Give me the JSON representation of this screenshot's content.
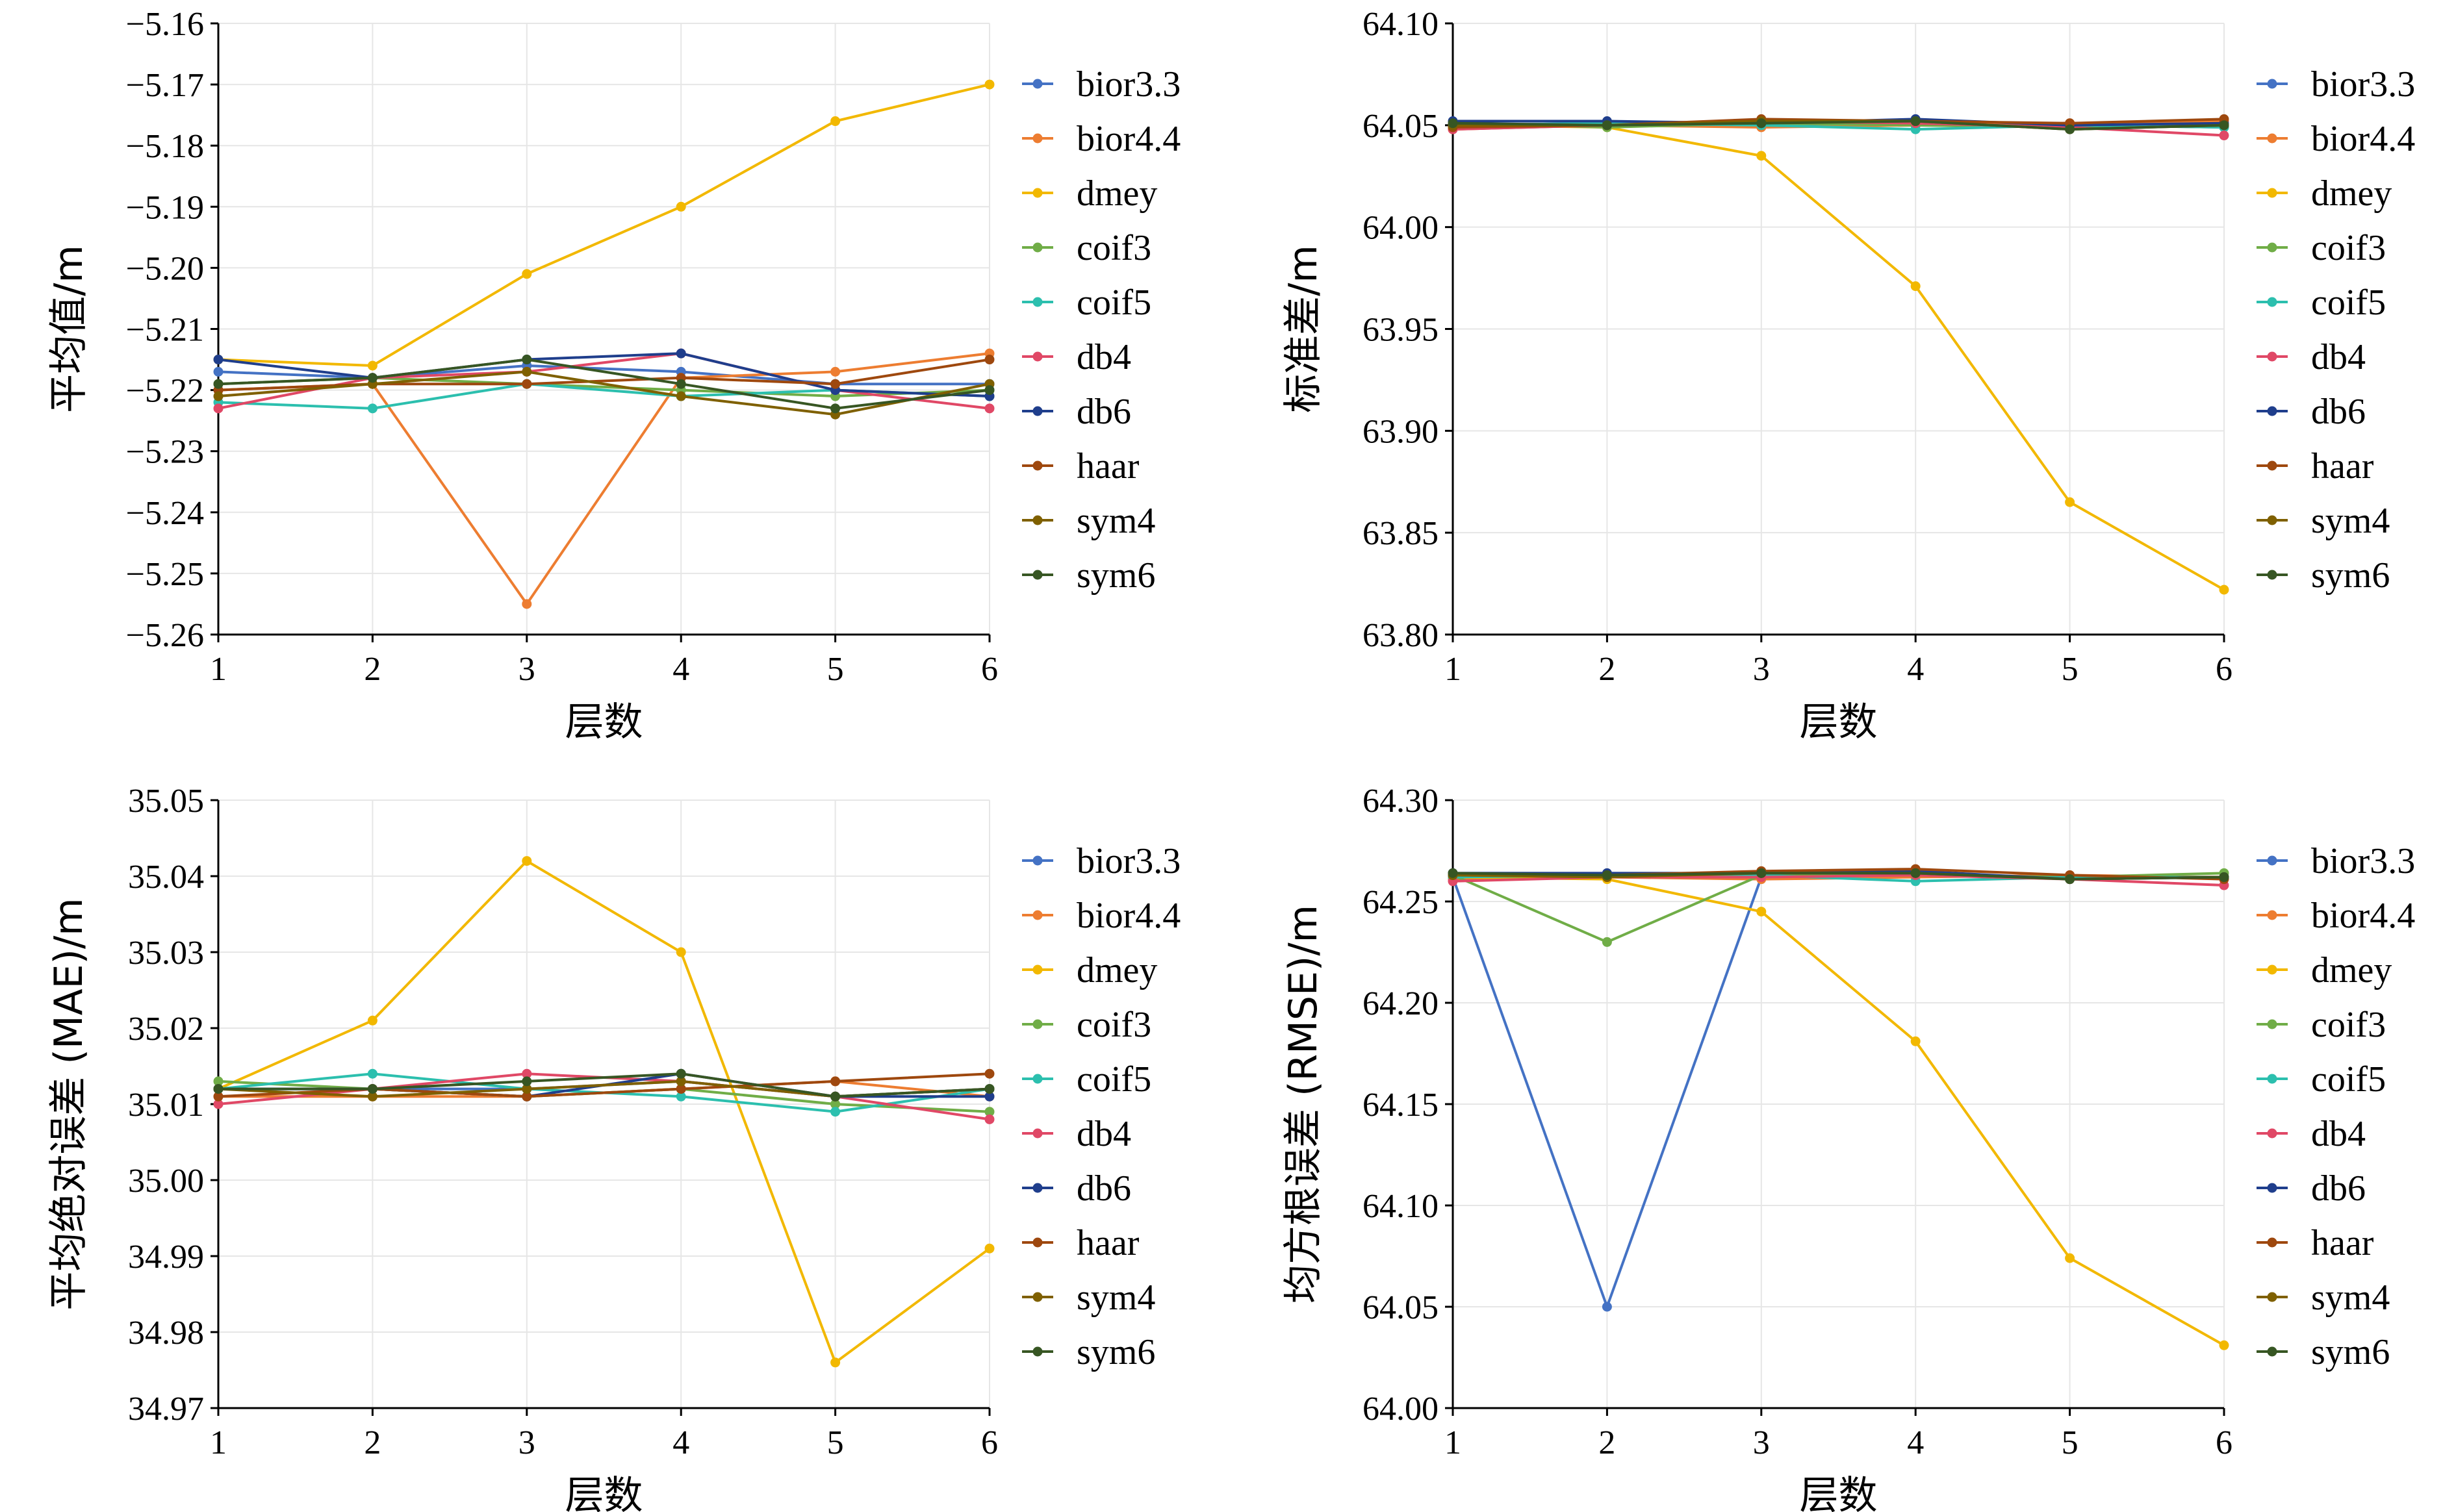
{
  "palette": {
    "bior3.3": "#4472c4",
    "bior4.4": "#ed7d31",
    "dmey": "#f2b800",
    "coif3": "#70ad47",
    "coif5": "#2cbfae",
    "db4": "#e04866",
    "db6": "#1f3e8c",
    "haar": "#9e480e",
    "sym4": "#7f6000",
    "sym6": "#375623"
  },
  "chart_data": [
    {
      "type": "line",
      "title": "",
      "xlabel": "层数",
      "ylabel": "平均值/m",
      "x": [
        1,
        2,
        3,
        4,
        5,
        6
      ],
      "xlim": [
        1,
        6
      ],
      "ylim": [
        -5.26,
        -5.16
      ],
      "yticks": [
        -5.26,
        -5.25,
        -5.24,
        -5.23,
        -5.22,
        -5.21,
        -5.2,
        -5.19,
        -5.18,
        -5.17,
        -5.16
      ],
      "ytick_labels": [
        "−5.26",
        "−5.25",
        "−5.24",
        "−5.23",
        "−5.22",
        "−5.21",
        "−5.20",
        "−5.19",
        "−5.18",
        "−5.17",
        "−5.16"
      ],
      "xtick_labels": [
        "1",
        "2",
        "3",
        "4",
        "5",
        "6"
      ],
      "grid": true,
      "legend": "right",
      "series": [
        {
          "name": "bior3.3",
          "values": [
            -5.217,
            -5.218,
            -5.216,
            -5.217,
            -5.219,
            -5.219
          ]
        },
        {
          "name": "bior4.4",
          "values": [
            -5.22,
            -5.219,
            -5.255,
            -5.218,
            -5.217,
            -5.214
          ]
        },
        {
          "name": "dmey",
          "values": [
            -5.215,
            -5.216,
            -5.201,
            -5.19,
            -5.176,
            -5.17
          ]
        },
        {
          "name": "coif3",
          "values": [
            -5.219,
            -5.218,
            -5.219,
            -5.22,
            -5.221,
            -5.22
          ]
        },
        {
          "name": "coif5",
          "values": [
            -5.222,
            -5.223,
            -5.219,
            -5.221,
            -5.22,
            -5.221
          ]
        },
        {
          "name": "db4",
          "values": [
            -5.223,
            -5.218,
            -5.217,
            -5.214,
            -5.22,
            -5.223
          ]
        },
        {
          "name": "db6",
          "values": [
            -5.215,
            -5.218,
            -5.215,
            -5.214,
            -5.22,
            -5.221
          ]
        },
        {
          "name": "haar",
          "values": [
            -5.22,
            -5.219,
            -5.219,
            -5.218,
            -5.219,
            -5.215
          ]
        },
        {
          "name": "sym4",
          "values": [
            -5.221,
            -5.219,
            -5.217,
            -5.221,
            -5.224,
            -5.219
          ]
        },
        {
          "name": "sym6",
          "values": [
            -5.219,
            -5.218,
            -5.215,
            -5.219,
            -5.223,
            -5.22
          ]
        }
      ]
    },
    {
      "type": "line",
      "title": "",
      "xlabel": "层数",
      "ylabel": "标准差/m",
      "x": [
        1,
        2,
        3,
        4,
        5,
        6
      ],
      "xlim": [
        1,
        6
      ],
      "ylim": [
        63.8,
        64.1
      ],
      "yticks": [
        63.8,
        63.85,
        63.9,
        63.95,
        64.0,
        64.05,
        64.1
      ],
      "ytick_labels": [
        "63.80",
        "63.85",
        "63.90",
        "63.95",
        "64.00",
        "64.05",
        "64.10"
      ],
      "xtick_labels": [
        "1",
        "2",
        "3",
        "4",
        "5",
        "6"
      ],
      "grid": true,
      "legend": "right",
      "series": [
        {
          "name": "bior3.3",
          "values": [
            64.05,
            64.051,
            64.05,
            64.051,
            64.05,
            64.049
          ]
        },
        {
          "name": "bior4.4",
          "values": [
            64.048,
            64.05,
            64.049,
            64.05,
            64.051,
            64.052
          ]
        },
        {
          "name": "dmey",
          "values": [
            64.05,
            64.049,
            64.035,
            63.971,
            63.865,
            63.822
          ]
        },
        {
          "name": "coif3",
          "values": [
            64.051,
            64.049,
            64.051,
            64.05,
            64.049,
            64.05
          ]
        },
        {
          "name": "coif5",
          "values": [
            64.05,
            64.051,
            64.05,
            64.048,
            64.05,
            64.049
          ]
        },
        {
          "name": "db4",
          "values": [
            64.048,
            64.05,
            64.052,
            64.051,
            64.049,
            64.045
          ]
        },
        {
          "name": "db6",
          "values": [
            64.052,
            64.052,
            64.051,
            64.053,
            64.05,
            64.051
          ]
        },
        {
          "name": "haar",
          "values": [
            64.049,
            64.05,
            64.053,
            64.052,
            64.051,
            64.053
          ]
        },
        {
          "name": "sym4",
          "values": [
            64.05,
            64.05,
            64.052,
            64.052,
            64.048,
            64.05
          ]
        },
        {
          "name": "sym6",
          "values": [
            64.051,
            64.05,
            64.051,
            64.052,
            64.048,
            64.05
          ]
        }
      ]
    },
    {
      "type": "line",
      "title": "",
      "xlabel": "层数",
      "ylabel": "平均绝对误差 (MAE)/m",
      "x": [
        1,
        2,
        3,
        4,
        5,
        6
      ],
      "xlim": [
        1,
        6
      ],
      "ylim": [
        34.97,
        35.05
      ],
      "yticks": [
        34.97,
        34.98,
        34.99,
        35.0,
        35.01,
        35.02,
        35.03,
        35.04,
        35.05
      ],
      "ytick_labels": [
        "34.97",
        "34.98",
        "34.99",
        "35.00",
        "35.01",
        "35.02",
        "35.03",
        "35.04",
        "35.05"
      ],
      "xtick_labels": [
        "1",
        "2",
        "3",
        "4",
        "5",
        "6"
      ],
      "grid": true,
      "legend": "right",
      "series": [
        {
          "name": "bior3.3",
          "values": [
            35.012,
            35.012,
            35.012,
            35.013,
            35.011,
            35.012
          ]
        },
        {
          "name": "bior4.4",
          "values": [
            35.011,
            35.011,
            35.011,
            35.012,
            35.013,
            35.011
          ]
        },
        {
          "name": "dmey",
          "values": [
            35.012,
            35.021,
            35.042,
            35.03,
            34.976,
            34.991
          ]
        },
        {
          "name": "coif3",
          "values": [
            35.013,
            35.012,
            35.011,
            35.012,
            35.01,
            35.009
          ]
        },
        {
          "name": "coif5",
          "values": [
            35.012,
            35.014,
            35.012,
            35.011,
            35.009,
            35.012
          ]
        },
        {
          "name": "db4",
          "values": [
            35.01,
            35.012,
            35.014,
            35.013,
            35.011,
            35.008
          ]
        },
        {
          "name": "db6",
          "values": [
            35.012,
            35.012,
            35.011,
            35.014,
            35.011,
            35.011
          ]
        },
        {
          "name": "haar",
          "values": [
            35.011,
            35.012,
            35.011,
            35.012,
            35.013,
            35.014
          ]
        },
        {
          "name": "sym4",
          "values": [
            35.012,
            35.011,
            35.012,
            35.013,
            35.011,
            35.012
          ]
        },
        {
          "name": "sym6",
          "values": [
            35.012,
            35.012,
            35.013,
            35.014,
            35.011,
            35.012
          ]
        }
      ]
    },
    {
      "type": "line",
      "title": "",
      "xlabel": "层数",
      "ylabel": "均方根误差 (RMSE)/m",
      "x": [
        1,
        2,
        3,
        4,
        5,
        6
      ],
      "xlim": [
        1,
        6
      ],
      "ylim": [
        64.0,
        64.3
      ],
      "yticks": [
        64.0,
        64.05,
        64.1,
        64.15,
        64.2,
        64.25,
        64.3
      ],
      "ytick_labels": [
        "64.00",
        "64.05",
        "64.10",
        "64.15",
        "64.20",
        "64.25",
        "64.30"
      ],
      "xtick_labels": [
        "1",
        "2",
        "3",
        "4",
        "5",
        "6"
      ],
      "grid": true,
      "legend": "right",
      "series": [
        {
          "name": "bior3.3",
          "values": [
            64.262,
            64.05,
            64.262,
            64.263,
            64.262,
            64.262
          ]
        },
        {
          "name": "bior4.4",
          "values": [
            64.261,
            64.262,
            64.261,
            64.262,
            64.263,
            64.262
          ]
        },
        {
          "name": "dmey",
          "values": [
            64.262,
            64.261,
            64.245,
            64.181,
            64.074,
            64.031
          ]
        },
        {
          "name": "coif3",
          "values": [
            64.263,
            64.23,
            64.263,
            64.263,
            64.262,
            64.264
          ]
        },
        {
          "name": "coif5",
          "values": [
            64.262,
            64.263,
            64.263,
            64.26,
            64.262,
            64.262
          ]
        },
        {
          "name": "db4",
          "values": [
            64.26,
            64.262,
            64.262,
            64.263,
            64.261,
            64.258
          ]
        },
        {
          "name": "db6",
          "values": [
            64.264,
            64.264,
            64.264,
            64.265,
            64.261,
            64.262
          ]
        },
        {
          "name": "haar",
          "values": [
            64.263,
            64.263,
            64.265,
            64.266,
            64.263,
            64.261
          ]
        },
        {
          "name": "sym4",
          "values": [
            64.263,
            64.262,
            64.264,
            64.264,
            64.261,
            64.262
          ]
        },
        {
          "name": "sym6",
          "values": [
            64.264,
            64.263,
            64.264,
            64.264,
            64.261,
            64.262
          ]
        }
      ]
    }
  ]
}
